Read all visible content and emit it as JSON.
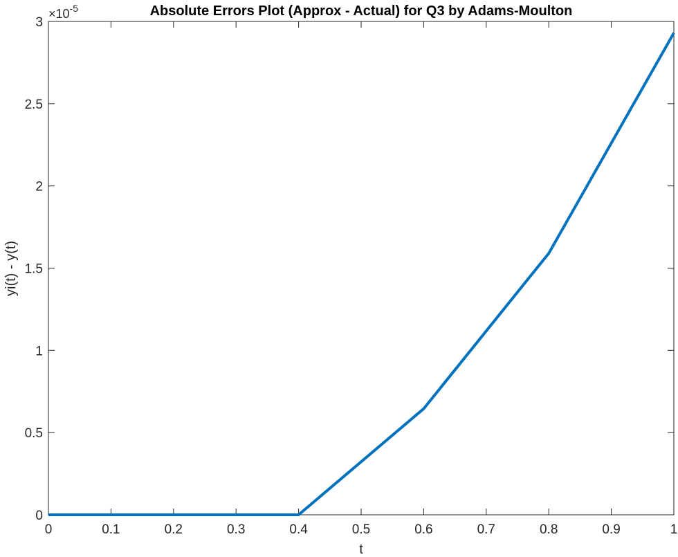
{
  "chart_data": {
    "type": "line",
    "title": "Absolute Errors Plot (Approx - Actual) for Q3 by Adams-Moulton",
    "xlabel": "t",
    "ylabel": "yi(t) - y(t)",
    "xlim": [
      0,
      1
    ],
    "ylim": [
      0,
      3e-05
    ],
    "x_ticks": [
      "0",
      "0.1",
      "0.2",
      "0.3",
      "0.4",
      "0.5",
      "0.6",
      "0.7",
      "0.8",
      "0.9",
      "1"
    ],
    "x_tick_values": [
      0,
      0.1,
      0.2,
      0.3,
      0.4,
      0.5,
      0.6,
      0.7,
      0.8,
      0.9,
      1
    ],
    "y_ticks": [
      "0",
      "0.5",
      "1",
      "1.5",
      "2",
      "2.5",
      "3"
    ],
    "y_tick_values": [
      0,
      5e-06,
      1e-05,
      1.5e-05,
      2e-05,
      2.5e-05,
      3e-05
    ],
    "y_multiplier_label": {
      "base": "×10",
      "exponent": "-5"
    },
    "grid": false,
    "series": [
      {
        "x": [
          0,
          0.2,
          0.4,
          0.6,
          0.8,
          1.0
        ],
        "y": [
          0,
          0,
          0,
          6.45e-06,
          1.59e-05,
          2.93e-05
        ],
        "color": "#0072BD"
      }
    ]
  }
}
